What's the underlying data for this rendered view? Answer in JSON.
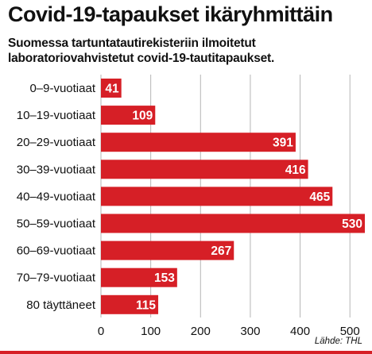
{
  "title": "Covid-19-tapaukset ikäryhmittäin",
  "subtitle": "Suomessa tartuntatautirekisteriin ilmoitetut laboratoriovahvistetut covid-19-tautitapaukset.",
  "source": "Lähde: THL",
  "colors": {
    "bar": "#d61f26",
    "grid": "#b5b5b5",
    "value_text": "#ffffff"
  },
  "chart_data": {
    "type": "bar",
    "orientation": "horizontal",
    "categories": [
      "0–9-vuotiaat",
      "10–19-vuotiaat",
      "20–29-vuotiaat",
      "30–39-vuotiaat",
      "40–49-vuotiaat",
      "50–59-vuotiaat",
      "60–69-vuotiaat",
      "70–79-vuotiaat",
      "80 täyttäneet"
    ],
    "values": [
      41,
      109,
      391,
      416,
      465,
      530,
      267,
      153,
      115
    ],
    "xlim": [
      0,
      530
    ],
    "xticks": [
      0,
      100,
      200,
      300,
      400,
      500
    ],
    "grid": "vertical",
    "value_labels": "inside-end"
  }
}
